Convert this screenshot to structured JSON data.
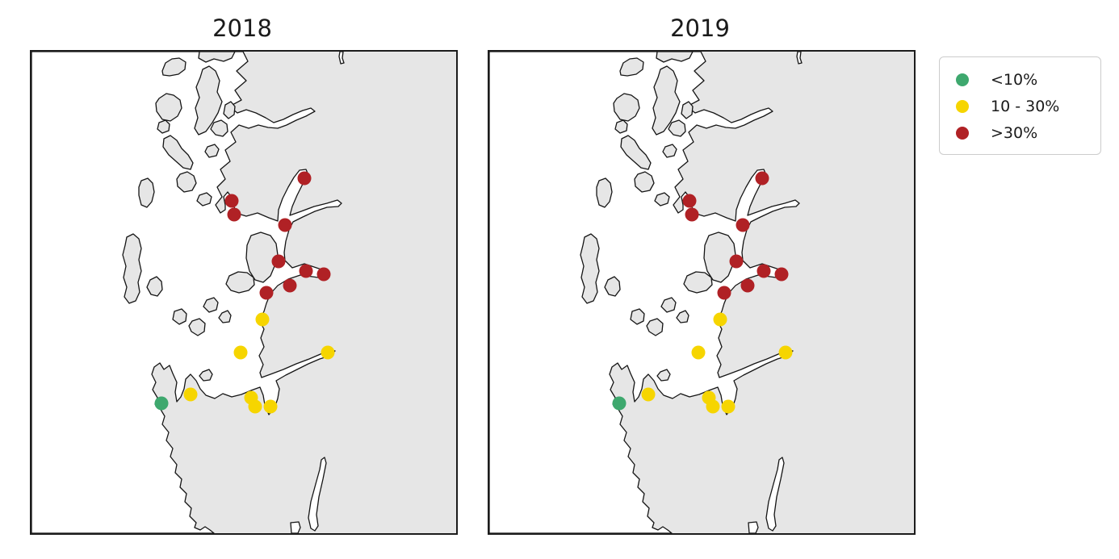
{
  "figure": {
    "background": "#ffffff",
    "land_color": "#e6e6e6",
    "sea_color": "#ffffff",
    "coast_color": "#151515",
    "panel_border_color": "#1c1c1c"
  },
  "panels": [
    {
      "title": "2018"
    },
    {
      "title": "2019"
    }
  ],
  "legend": {
    "items": [
      {
        "label": "<10%",
        "color": "#3ea86e"
      },
      {
        "label": "10 - 30%",
        "color": "#f6d500"
      },
      {
        "label": ">30%",
        "color": "#b02125"
      }
    ]
  },
  "chart_data": {
    "type": "scatter",
    "subtype": "categorical station markers on coastal maps (two identical map subplots)",
    "categories": [
      "<10%",
      "10 - 30%",
      ">30%"
    ],
    "category_colors": [
      "#3ea86e",
      "#f6d500",
      "#b02125"
    ],
    "legend_position": "upper right, outside axes",
    "marker_radius": 8.5,
    "panel_viewbox": [
      526,
      597
    ],
    "point_coord_note": "pixel coords inside each 526x597 map panel, y down; third value = category index",
    "panels": [
      {
        "title": "2018",
        "points": [
          [
            338,
            157,
            2
          ],
          [
            248,
            185,
            2
          ],
          [
            251,
            202,
            2
          ],
          [
            314,
            215,
            2
          ],
          [
            306,
            260,
            2
          ],
          [
            340,
            272,
            2
          ],
          [
            362,
            276,
            2
          ],
          [
            320,
            290,
            2
          ],
          [
            291,
            299,
            2
          ],
          [
            286,
            332,
            1
          ],
          [
            259,
            373,
            1
          ],
          [
            367,
            373,
            1
          ],
          [
            197,
            425,
            1
          ],
          [
            272,
            429,
            1
          ],
          [
            277,
            440,
            1
          ],
          [
            296,
            440,
            1
          ],
          [
            161,
            436,
            0
          ]
        ]
      },
      {
        "title": "2019",
        "points": [
          [
            338,
            157,
            2
          ],
          [
            248,
            185,
            2
          ],
          [
            251,
            202,
            2
          ],
          [
            314,
            215,
            2
          ],
          [
            306,
            260,
            2
          ],
          [
            340,
            272,
            2
          ],
          [
            362,
            276,
            2
          ],
          [
            320,
            290,
            2
          ],
          [
            291,
            299,
            2
          ],
          [
            286,
            332,
            1
          ],
          [
            259,
            373,
            1
          ],
          [
            367,
            373,
            1
          ],
          [
            197,
            425,
            1
          ],
          [
            272,
            429,
            1
          ],
          [
            277,
            440,
            1
          ],
          [
            296,
            440,
            1
          ],
          [
            161,
            436,
            0
          ]
        ]
      }
    ]
  }
}
